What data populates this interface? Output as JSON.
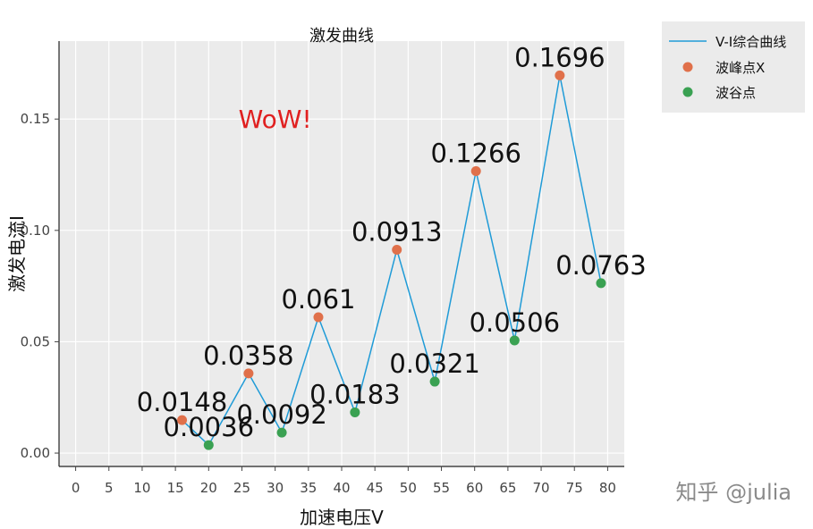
{
  "chart_data": {
    "type": "line",
    "title": "激发曲线",
    "xlabel": "加速电压V",
    "ylabel": "激发电流I",
    "xlim": [
      -2.5,
      82.5
    ],
    "ylim": [
      -0.006,
      0.185
    ],
    "xticks": [
      0,
      5,
      10,
      15,
      20,
      25,
      30,
      35,
      40,
      45,
      50,
      55,
      60,
      65,
      70,
      75,
      80
    ],
    "yticks": [
      0.0,
      0.05,
      0.1,
      0.15
    ],
    "ytick_labels": [
      "0.00",
      "0.05",
      "0.10",
      "0.15"
    ],
    "grid": true,
    "legend_placement": "outside-top-right",
    "series": [
      {
        "name": "V-I综合曲线",
        "kind": "line",
        "color": "#1f9bd7",
        "x": [
          16,
          20,
          26,
          31,
          36.5,
          42,
          48.3,
          54,
          60.2,
          66,
          72.8,
          79
        ],
        "y": [
          0.0148,
          0.0036,
          0.0358,
          0.0092,
          0.061,
          0.0183,
          0.0913,
          0.0321,
          0.1266,
          0.0506,
          0.1696,
          0.0763
        ]
      },
      {
        "name": "波峰点X",
        "kind": "scatter",
        "color": "#e0704a",
        "x": [
          16,
          26,
          36.5,
          48.3,
          60.2,
          72.8
        ],
        "y": [
          0.0148,
          0.0358,
          0.061,
          0.0913,
          0.1266,
          0.1696
        ],
        "labels": [
          "0.0148",
          "0.0358",
          "0.061",
          "0.0913",
          "0.1266",
          "0.1696"
        ]
      },
      {
        "name": "波谷点",
        "kind": "scatter",
        "color": "#3aa152",
        "x": [
          20,
          31,
          42,
          54,
          66,
          79
        ],
        "y": [
          0.0036,
          0.0092,
          0.0183,
          0.0321,
          0.0506,
          0.0763
        ],
        "labels": [
          "0.0036",
          "0.0092",
          "0.0183",
          "0.0321",
          "0.0506",
          "0.0763"
        ]
      }
    ],
    "annotation": {
      "text": "WoW!",
      "x": 30,
      "y": 0.15,
      "color": "#e02020"
    }
  },
  "watermark": "知乎 @julia",
  "colors": {
    "plot_bg": "#ebebeb",
    "legend_bg": "#ebebeb",
    "grid": "#ffffff"
  }
}
